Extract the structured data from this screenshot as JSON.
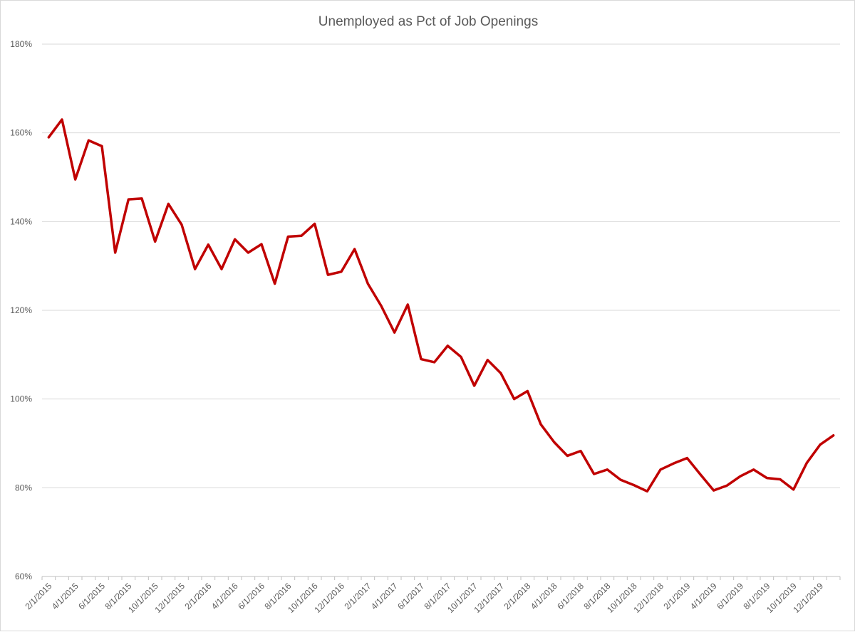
{
  "chart_data": {
    "type": "line",
    "title": "Unemployed as Pct of Job Openings",
    "xlabel": "",
    "ylabel": "",
    "ylim": [
      60,
      180
    ],
    "y_ticks": [
      60,
      80,
      100,
      120,
      140,
      160,
      180
    ],
    "y_tick_format": "{v}%",
    "grid": true,
    "legend": "none",
    "line_color": "#C00000",
    "x": [
      "2/1/2015",
      "3/1/2015",
      "4/1/2015",
      "5/1/2015",
      "6/1/2015",
      "7/1/2015",
      "8/1/2015",
      "9/1/2015",
      "10/1/2015",
      "11/1/2015",
      "12/1/2015",
      "1/1/2016",
      "2/1/2016",
      "3/1/2016",
      "4/1/2016",
      "5/1/2016",
      "6/1/2016",
      "7/1/2016",
      "8/1/2016",
      "9/1/2016",
      "10/1/2016",
      "11/1/2016",
      "12/1/2016",
      "1/1/2017",
      "2/1/2017",
      "3/1/2017",
      "4/1/2017",
      "5/1/2017",
      "6/1/2017",
      "7/1/2017",
      "8/1/2017",
      "9/1/2017",
      "10/1/2017",
      "11/1/2017",
      "12/1/2017",
      "1/1/2018",
      "2/1/2018",
      "3/1/2018",
      "4/1/2018",
      "5/1/2018",
      "6/1/2018",
      "7/1/2018",
      "8/1/2018",
      "9/1/2018",
      "10/1/2018",
      "11/1/2018",
      "12/1/2018",
      "1/1/2019",
      "2/1/2019",
      "3/1/2019",
      "4/1/2019",
      "5/1/2019",
      "6/1/2019",
      "7/1/2019",
      "8/1/2019",
      "9/1/2019",
      "10/1/2019",
      "11/1/2019",
      "12/1/2019",
      "1/1/2020"
    ],
    "x_tick_labels": [
      "2/1/2015",
      "4/1/2015",
      "6/1/2015",
      "8/1/2015",
      "10/1/2015",
      "12/1/2015",
      "2/1/2016",
      "4/1/2016",
      "6/1/2016",
      "8/1/2016",
      "10/1/2016",
      "12/1/2016",
      "2/1/2017",
      "4/1/2017",
      "6/1/2017",
      "8/1/2017",
      "10/1/2017",
      "12/1/2017",
      "2/1/2018",
      "4/1/2018",
      "6/1/2018",
      "8/1/2018",
      "10/1/2018",
      "12/1/2018",
      "2/1/2019",
      "4/1/2019",
      "6/1/2019",
      "8/1/2019",
      "10/1/2019",
      "12/1/2019"
    ],
    "series": [
      {
        "values": [
          159,
          163,
          149.5,
          158.3,
          157,
          133,
          145,
          145.2,
          135.5,
          144,
          139.3,
          129.3,
          134.8,
          129.3,
          136,
          133,
          134.9,
          126,
          136.6,
          136.8,
          139.5,
          128,
          128.7,
          133.8,
          126,
          121,
          115,
          121.3,
          109,
          108.3,
          112,
          109.5,
          103,
          108.8,
          105.8,
          100,
          101.8,
          94.3,
          90.3,
          87.2,
          88.3,
          83.1,
          84.1,
          81.8,
          80.6,
          79.2,
          84.1,
          85.5,
          86.7,
          83,
          79.4,
          80.5,
          82.6,
          84.1,
          82.2,
          81.9,
          79.6,
          85.6,
          89.7,
          91.8
        ]
      }
    ]
  }
}
